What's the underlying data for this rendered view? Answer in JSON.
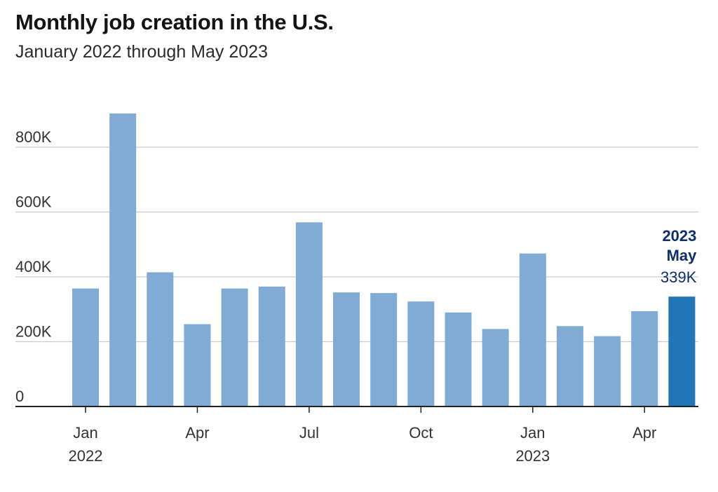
{
  "header": {
    "title": "Monthly job creation in the U.S.",
    "subtitle": "January 2022 through May 2023"
  },
  "colors": {
    "bar": "#80abd5",
    "highlight": "#2176b8",
    "annotation": "#0d2f6e",
    "grid": "#cccccc",
    "axis": "#222222",
    "text": "#333333"
  },
  "chart_data": {
    "type": "bar",
    "title": "Monthly job creation in the U.S.",
    "subtitle": "January 2022 through May 2023",
    "categories": [
      "2022-01",
      "2022-02",
      "2022-03",
      "2022-04",
      "2022-05",
      "2022-06",
      "2022-07",
      "2022-08",
      "2022-09",
      "2022-10",
      "2022-11",
      "2022-12",
      "2023-01",
      "2023-02",
      "2023-03",
      "2023-04",
      "2023-05"
    ],
    "values": [
      364,
      904,
      414,
      254,
      364,
      370,
      568,
      352,
      350,
      324,
      290,
      239,
      472,
      248,
      217,
      294,
      339
    ],
    "ylim": [
      0,
      900
    ],
    "yticks": [
      {
        "value": 0,
        "label": "0"
      },
      {
        "value": 200,
        "label": "200K"
      },
      {
        "value": 400,
        "label": "400K"
      },
      {
        "value": 600,
        "label": "600K"
      },
      {
        "value": 800,
        "label": "800K"
      }
    ],
    "xticks": [
      {
        "index": 0,
        "label": "Jan",
        "sublabel": "2022"
      },
      {
        "index": 3,
        "label": "Apr",
        "sublabel": ""
      },
      {
        "index": 6,
        "label": "Jul",
        "sublabel": ""
      },
      {
        "index": 9,
        "label": "Oct",
        "sublabel": ""
      },
      {
        "index": 12,
        "label": "Jan",
        "sublabel": "2023"
      },
      {
        "index": 15,
        "label": "Apr",
        "sublabel": ""
      }
    ],
    "highlight_index": 16,
    "annotation": {
      "year": "2023",
      "month": "May",
      "value_label": "339K"
    },
    "xlabel": "",
    "ylabel": "",
    "grid": true,
    "legend": "none"
  }
}
